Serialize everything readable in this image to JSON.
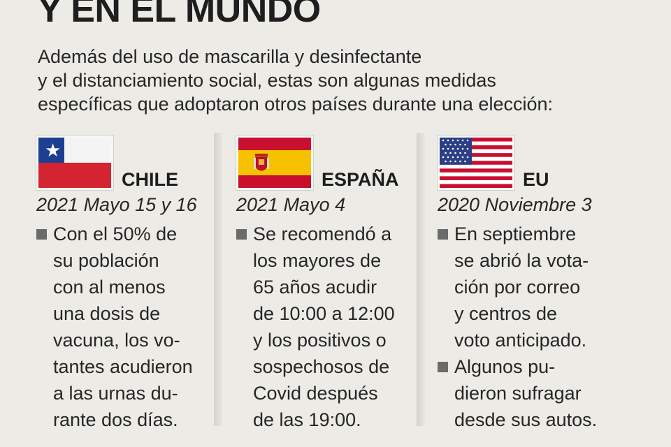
{
  "header": {
    "title": "Y EN EL MUNDO",
    "intro_lines": [
      "Además del uso de mascarilla y desinfectante",
      "y el distanciamiento social, estas son algunas medidas",
      "específicas que adoptaron otros países durante una elección:"
    ]
  },
  "countries": [
    {
      "name": "CHILE",
      "flag": "chile-flag-icon",
      "date": "2021 Mayo 15 y 16",
      "items": [
        [
          "Con el 50% de",
          "su población",
          "con al menos",
          "una dosis de",
          "vacuna, los vo-",
          "tantes acudieron",
          "a las urnas du-",
          "rante dos días."
        ]
      ]
    },
    {
      "name": "ESPAÑA",
      "flag": "spain-flag-icon",
      "date": "2021 Mayo 4",
      "items": [
        [
          "Se recomendó a",
          "los mayores de",
          "65 años acudir",
          "de 10:00 a 12:00",
          "y los positivos o",
          "sospechosos de",
          "Covid después",
          "de las 19:00."
        ]
      ]
    },
    {
      "name": "EU",
      "flag": "usa-flag-icon",
      "date": "2020 Noviembre 3",
      "items": [
        [
          "En septiembre",
          "se abrió la vota-",
          "ción por correo",
          "y centros de",
          "voto anticipado."
        ],
        [
          "Algunos pu-",
          "dieron sufragar",
          "desde sus autos."
        ]
      ]
    }
  ],
  "colors": {
    "background": "#ecebe6",
    "text": "#262626",
    "bullet": "#6b6b6b"
  }
}
